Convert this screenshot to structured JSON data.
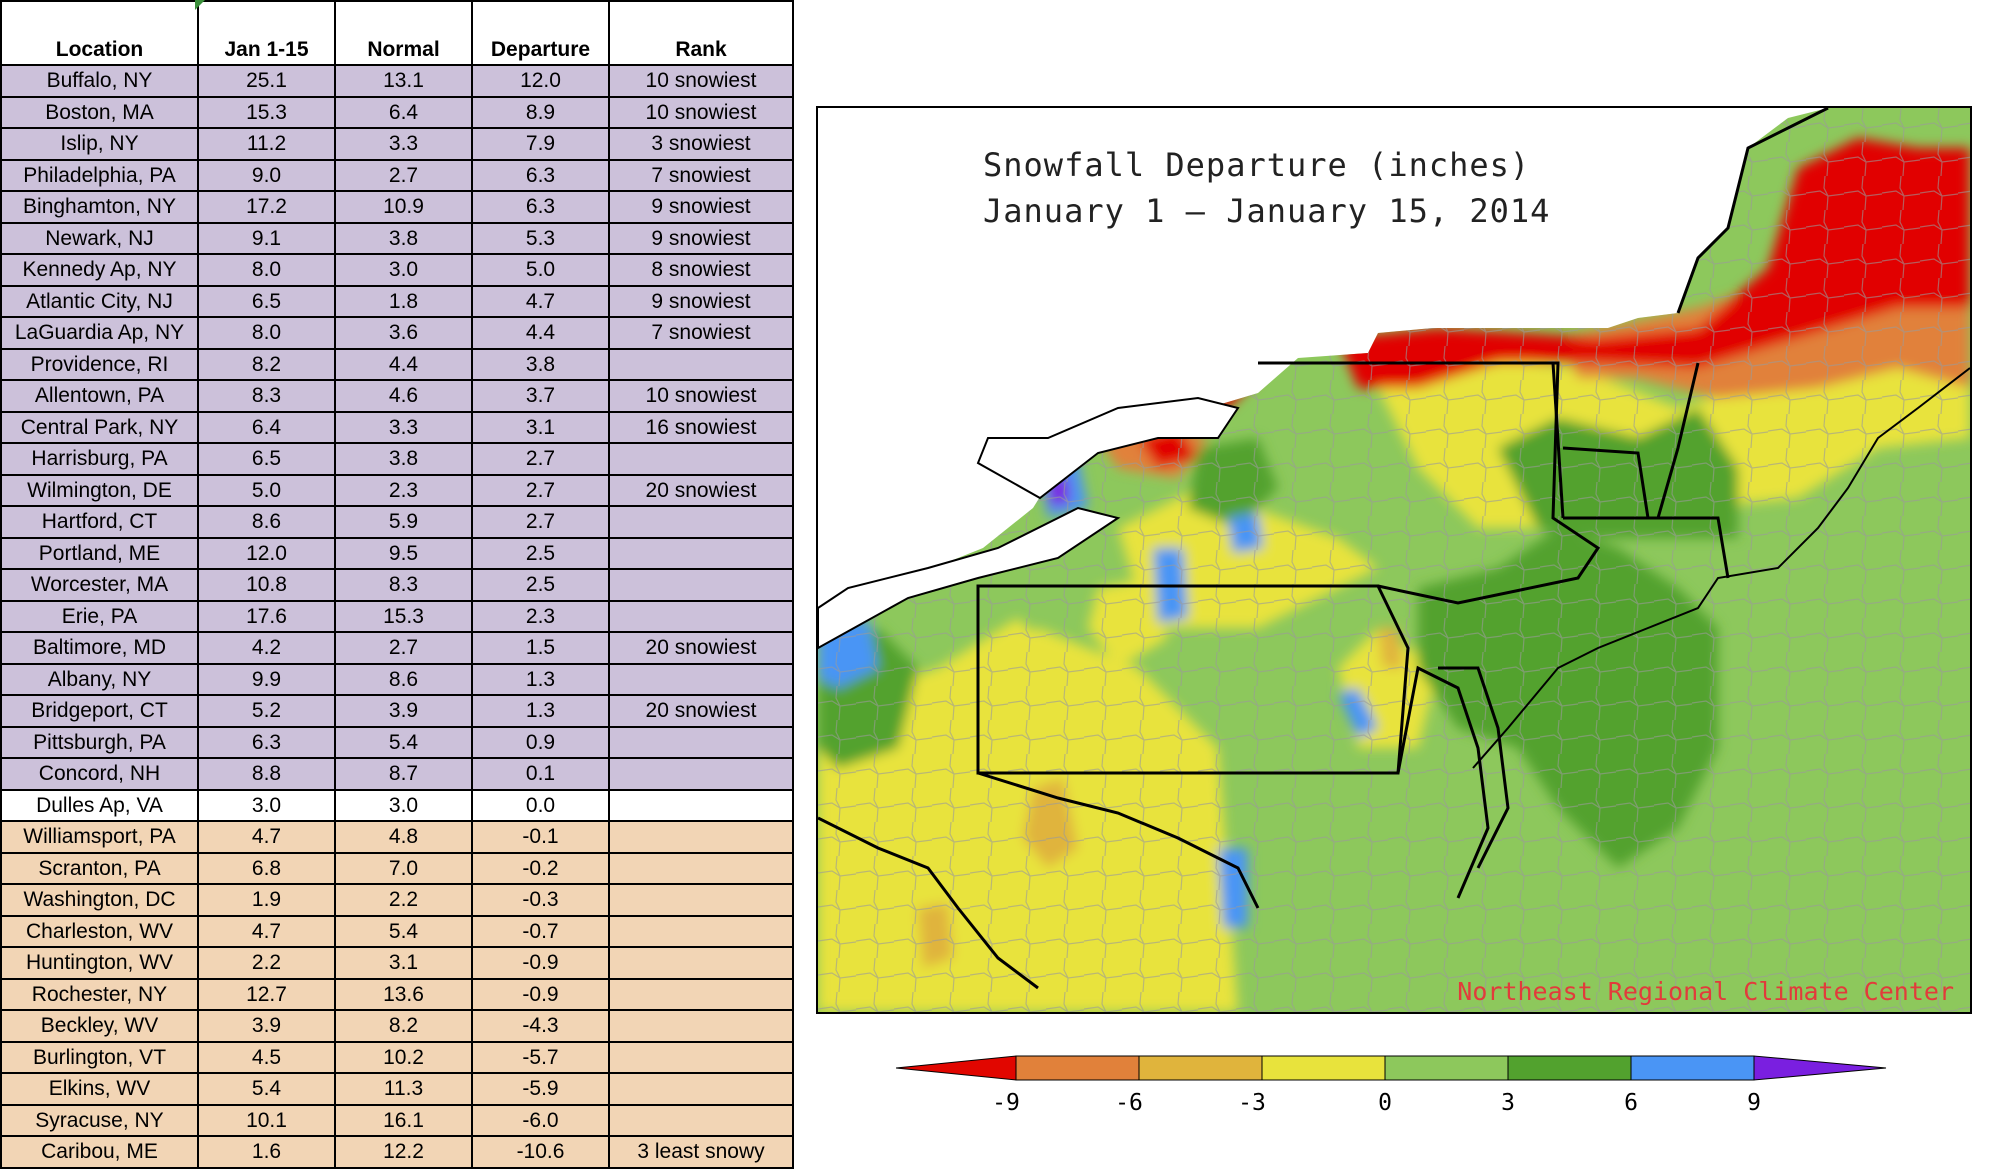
{
  "table": {
    "headers": [
      "Location",
      "Jan 1-15",
      "Normal",
      "Departure",
      "Rank"
    ],
    "rows": [
      {
        "location": "Buffalo, NY",
        "jan": "25.1",
        "normal": "13.1",
        "departure": "12.0",
        "rank": "10 snowiest",
        "group": "above"
      },
      {
        "location": "Boston, MA",
        "jan": "15.3",
        "normal": "6.4",
        "departure": "8.9",
        "rank": "10 snowiest",
        "group": "above"
      },
      {
        "location": "Islip, NY",
        "jan": "11.2",
        "normal": "3.3",
        "departure": "7.9",
        "rank": "3 snowiest",
        "group": "above"
      },
      {
        "location": "Philadelphia, PA",
        "jan": "9.0",
        "normal": "2.7",
        "departure": "6.3",
        "rank": "7 snowiest",
        "group": "above"
      },
      {
        "location": "Binghamton, NY",
        "jan": "17.2",
        "normal": "10.9",
        "departure": "6.3",
        "rank": "9 snowiest",
        "group": "above"
      },
      {
        "location": "Newark, NJ",
        "jan": "9.1",
        "normal": "3.8",
        "departure": "5.3",
        "rank": "9 snowiest",
        "group": "above"
      },
      {
        "location": "Kennedy Ap, NY",
        "jan": "8.0",
        "normal": "3.0",
        "departure": "5.0",
        "rank": "8 snowiest",
        "group": "above"
      },
      {
        "location": "Atlantic City, NJ",
        "jan": "6.5",
        "normal": "1.8",
        "departure": "4.7",
        "rank": "9 snowiest",
        "group": "above"
      },
      {
        "location": "LaGuardia Ap, NY",
        "jan": "8.0",
        "normal": "3.6",
        "departure": "4.4",
        "rank": "7 snowiest",
        "group": "above"
      },
      {
        "location": "Providence, RI",
        "jan": "8.2",
        "normal": "4.4",
        "departure": "3.8",
        "rank": "",
        "group": "above"
      },
      {
        "location": "Allentown, PA",
        "jan": "8.3",
        "normal": "4.6",
        "departure": "3.7",
        "rank": "10 snowiest",
        "group": "above"
      },
      {
        "location": "Central Park, NY",
        "jan": "6.4",
        "normal": "3.3",
        "departure": "3.1",
        "rank": "16 snowiest",
        "group": "above"
      },
      {
        "location": "Harrisburg, PA",
        "jan": "6.5",
        "normal": "3.8",
        "departure": "2.7",
        "rank": "",
        "group": "above"
      },
      {
        "location": "Wilmington, DE",
        "jan": "5.0",
        "normal": "2.3",
        "departure": "2.7",
        "rank": "20 snowiest",
        "group": "above"
      },
      {
        "location": "Hartford, CT",
        "jan": "8.6",
        "normal": "5.9",
        "departure": "2.7",
        "rank": "",
        "group": "above"
      },
      {
        "location": "Portland, ME",
        "jan": "12.0",
        "normal": "9.5",
        "departure": "2.5",
        "rank": "",
        "group": "above"
      },
      {
        "location": "Worcester, MA",
        "jan": "10.8",
        "normal": "8.3",
        "departure": "2.5",
        "rank": "",
        "group": "above"
      },
      {
        "location": "Erie, PA",
        "jan": "17.6",
        "normal": "15.3",
        "departure": "2.3",
        "rank": "",
        "group": "above"
      },
      {
        "location": "Baltimore, MD",
        "jan": "4.2",
        "normal": "2.7",
        "departure": "1.5",
        "rank": "20 snowiest",
        "group": "above"
      },
      {
        "location": "Albany, NY",
        "jan": "9.9",
        "normal": "8.6",
        "departure": "1.3",
        "rank": "",
        "group": "above"
      },
      {
        "location": "Bridgeport, CT",
        "jan": "5.2",
        "normal": "3.9",
        "departure": "1.3",
        "rank": "20 snowiest",
        "group": "above"
      },
      {
        "location": "Pittsburgh, PA",
        "jan": "6.3",
        "normal": "5.4",
        "departure": "0.9",
        "rank": "",
        "group": "above"
      },
      {
        "location": "Concord, NH",
        "jan": "8.8",
        "normal": "8.7",
        "departure": "0.1",
        "rank": "",
        "group": "above"
      },
      {
        "location": "Dulles Ap, VA",
        "jan": "3.0",
        "normal": "3.0",
        "departure": "0.0",
        "rank": "",
        "group": "zero"
      },
      {
        "location": "Williamsport, PA",
        "jan": "4.7",
        "normal": "4.8",
        "departure": "-0.1",
        "rank": "",
        "group": "below"
      },
      {
        "location": "Scranton, PA",
        "jan": "6.8",
        "normal": "7.0",
        "departure": "-0.2",
        "rank": "",
        "group": "below"
      },
      {
        "location": "Washington, DC",
        "jan": "1.9",
        "normal": "2.2",
        "departure": "-0.3",
        "rank": "",
        "group": "below"
      },
      {
        "location": "Charleston, WV",
        "jan": "4.7",
        "normal": "5.4",
        "departure": "-0.7",
        "rank": "",
        "group": "below"
      },
      {
        "location": "Huntington, WV",
        "jan": "2.2",
        "normal": "3.1",
        "departure": "-0.9",
        "rank": "",
        "group": "below"
      },
      {
        "location": "Rochester, NY",
        "jan": "12.7",
        "normal": "13.6",
        "departure": "-0.9",
        "rank": "",
        "group": "below"
      },
      {
        "location": "Beckley, WV",
        "jan": "3.9",
        "normal": "8.2",
        "departure": "-4.3",
        "rank": "",
        "group": "below"
      },
      {
        "location": "Burlington, VT",
        "jan": "4.5",
        "normal": "10.2",
        "departure": "-5.7",
        "rank": "",
        "group": "below"
      },
      {
        "location": "Elkins, WV",
        "jan": "5.4",
        "normal": "11.3",
        "departure": "-5.9",
        "rank": "",
        "group": "below"
      },
      {
        "location": "Syracuse, NY",
        "jan": "10.1",
        "normal": "16.1",
        "departure": "-6.0",
        "rank": "",
        "group": "below"
      },
      {
        "location": "Caribou, ME",
        "jan": "1.6",
        "normal": "12.2",
        "departure": "-10.6",
        "rank": "3 least snowy",
        "group": "below"
      }
    ],
    "row_colors": {
      "above": "#ccc1da",
      "zero": "#ffffff",
      "below": "#f2d5b5"
    }
  },
  "map": {
    "title_line1": "Snowfall Departure (inches)",
    "title_line2": "January 1 — January 15, 2014",
    "credit": "Northeast Regional Climate Center"
  },
  "legend": {
    "ticks": [
      "-9",
      "-6",
      "-3",
      "0",
      "3",
      "6",
      "9"
    ],
    "colors": [
      "#e10600",
      "#e1813a",
      "#e0b43c",
      "#e8e33c",
      "#8dc85c",
      "#52a22e",
      "#4a95f5",
      "#7a1fe0"
    ]
  }
}
